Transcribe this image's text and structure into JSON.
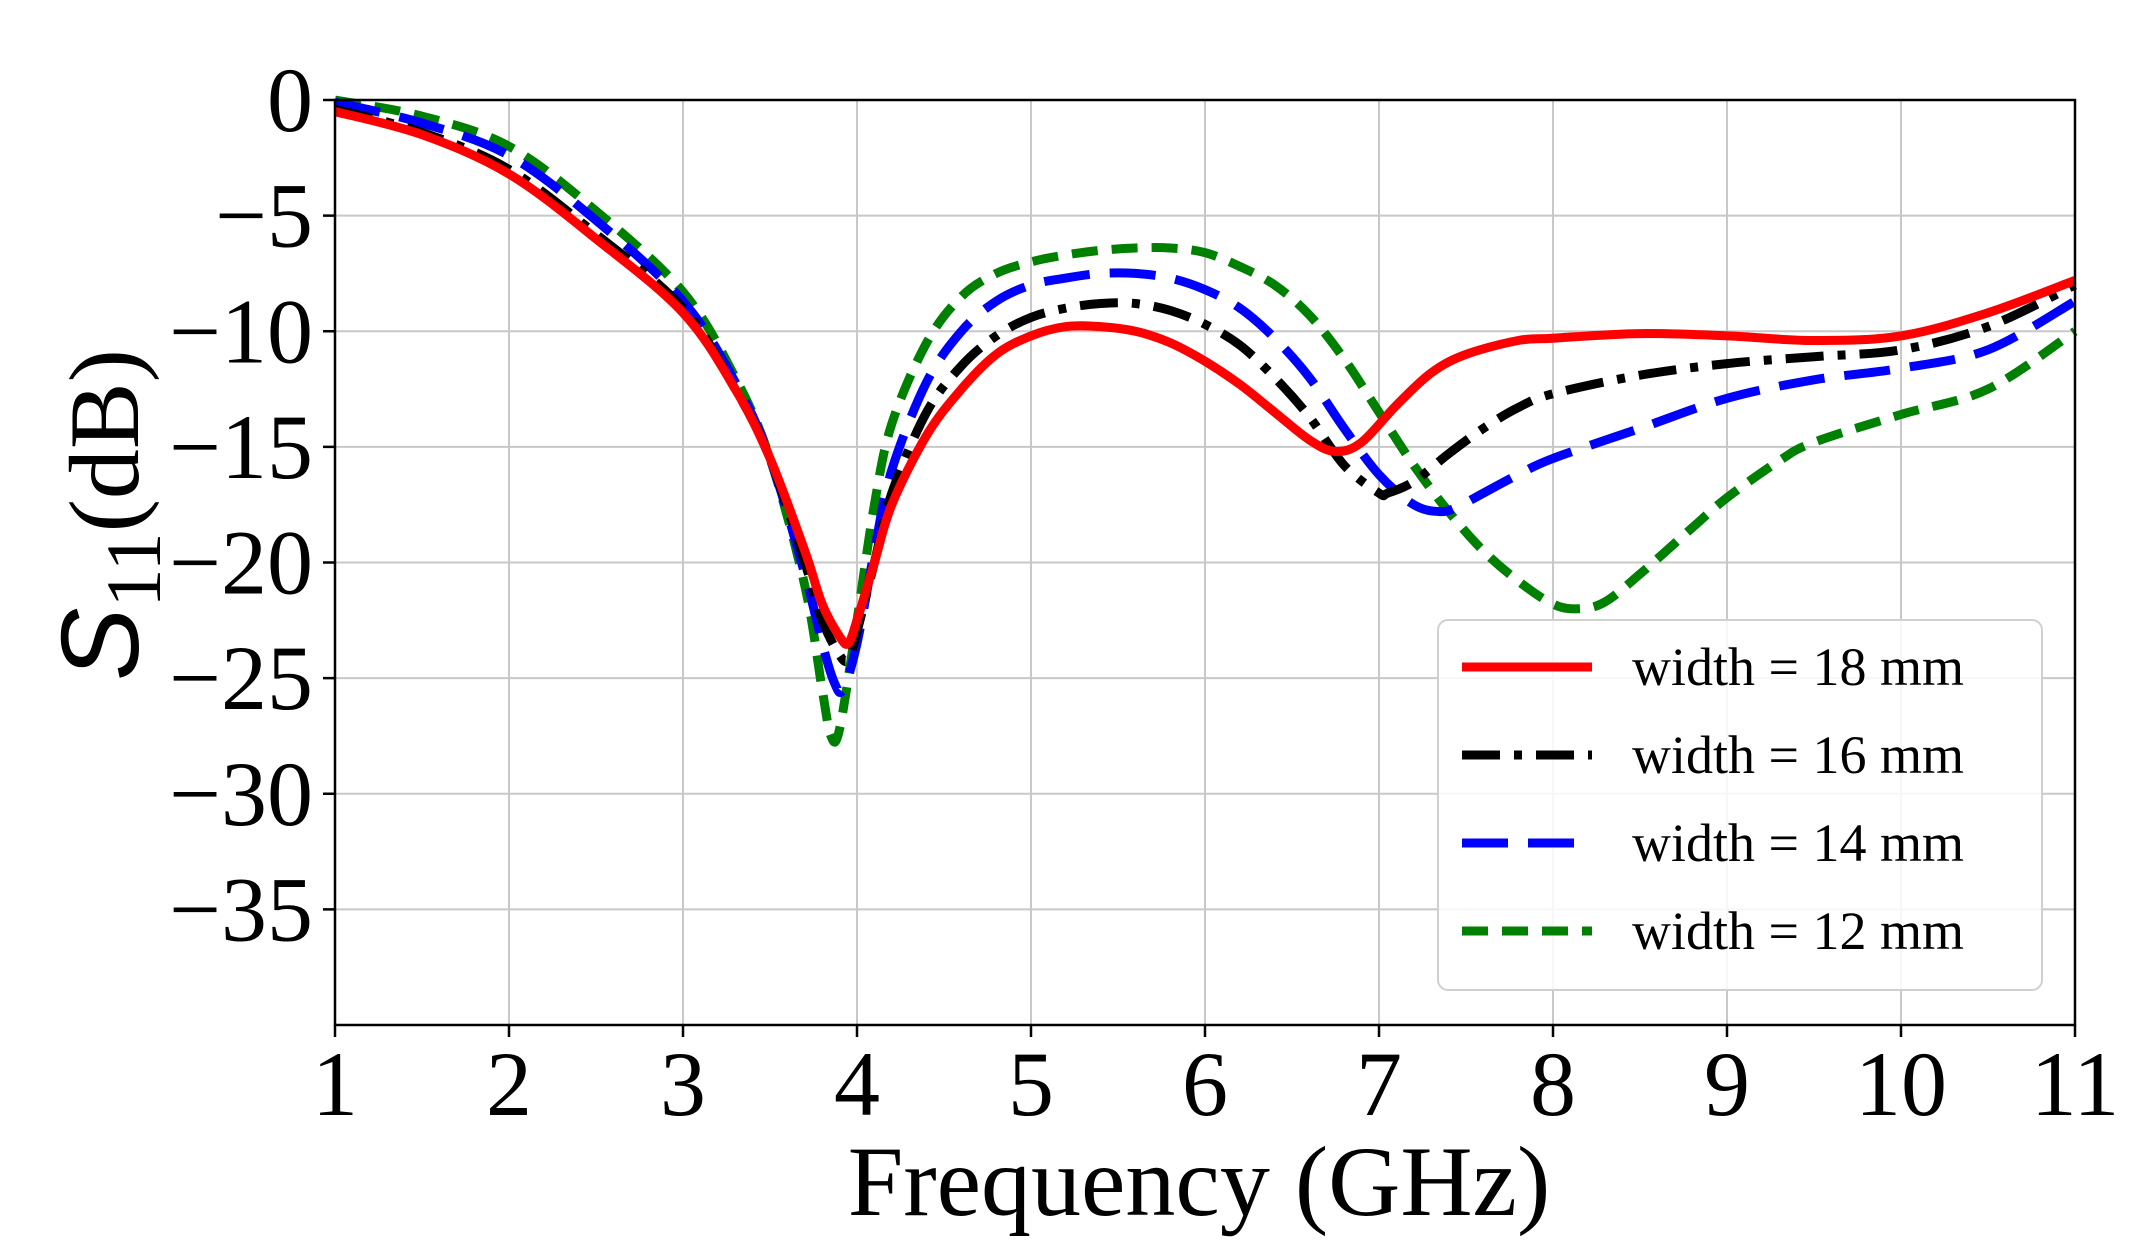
{
  "chart_data": {
    "type": "line",
    "title": "",
    "xlabel": "Frequency (GHz)",
    "ylabel_main": "S",
    "ylabel_sub": "11",
    "ylabel_unit": "(dB)",
    "xlim": [
      1,
      11
    ],
    "ylim": [
      -40,
      0
    ],
    "xticks": [
      1,
      2,
      3,
      4,
      5,
      6,
      7,
      8,
      9,
      10,
      11
    ],
    "yticks": [
      0,
      -5,
      -10,
      -15,
      -20,
      -25,
      -30,
      -35
    ],
    "xtick_labels": [
      "1",
      "2",
      "3",
      "4",
      "5",
      "6",
      "7",
      "8",
      "9",
      "10",
      "11"
    ],
    "ytick_labels": [
      "0",
      "−5",
      "−10",
      "−15",
      "−20",
      "−25",
      "−30",
      "−35"
    ],
    "grid": true,
    "legend_position": "lower-right",
    "series": [
      {
        "name": "width = 18 mm",
        "color": "#ff0000",
        "style": "solid",
        "x": [
          1.0,
          1.5,
          2.0,
          2.5,
          3.0,
          3.3,
          3.5,
          3.7,
          3.8,
          3.9,
          3.95,
          4.0,
          4.1,
          4.2,
          4.4,
          4.6,
          4.8,
          5.0,
          5.2,
          5.4,
          5.6,
          5.8,
          6.0,
          6.2,
          6.4,
          6.6,
          6.75,
          6.9,
          7.1,
          7.3,
          7.5,
          7.8,
          8.0,
          8.5,
          9.0,
          9.5,
          10.0,
          10.5,
          11.0
        ],
        "y": [
          -0.5,
          -1.5,
          -3.2,
          -6.0,
          -9.2,
          -12.5,
          -15.5,
          -19.5,
          -21.8,
          -23.2,
          -23.5,
          -22.5,
          -20.0,
          -17.5,
          -14.5,
          -12.5,
          -11.0,
          -10.2,
          -9.8,
          -9.8,
          -10.0,
          -10.5,
          -11.3,
          -12.3,
          -13.5,
          -14.7,
          -15.2,
          -14.8,
          -13.2,
          -11.8,
          -11.0,
          -10.4,
          -10.3,
          -10.1,
          -10.2,
          -10.4,
          -10.2,
          -9.2,
          -7.8
        ]
      },
      {
        "name": "width = 16 mm",
        "color": "#000000",
        "style": "dashdot",
        "x": [
          1.0,
          1.5,
          2.0,
          2.5,
          3.0,
          3.3,
          3.5,
          3.7,
          3.8,
          3.9,
          3.95,
          4.0,
          4.1,
          4.2,
          4.4,
          4.6,
          4.8,
          5.0,
          5.2,
          5.4,
          5.6,
          5.8,
          6.0,
          6.2,
          6.4,
          6.6,
          6.8,
          7.0,
          7.05,
          7.2,
          7.4,
          7.6,
          7.8,
          8.0,
          8.5,
          9.0,
          9.5,
          10.0,
          10.5,
          11.0
        ],
        "y": [
          -0.4,
          -1.4,
          -3.0,
          -5.8,
          -9.0,
          -12.5,
          -15.5,
          -20.0,
          -22.5,
          -24.0,
          -24.2,
          -23.0,
          -20.0,
          -17.0,
          -13.5,
          -11.5,
          -10.2,
          -9.4,
          -9.0,
          -8.8,
          -8.8,
          -9.1,
          -9.7,
          -10.6,
          -12.0,
          -13.7,
          -15.8,
          -17.0,
          -17.0,
          -16.5,
          -15.3,
          -14.2,
          -13.3,
          -12.7,
          -11.9,
          -11.4,
          -11.1,
          -10.8,
          -9.8,
          -8.0
        ]
      },
      {
        "name": "width = 14 mm",
        "color": "#0000ff",
        "style": "dashed",
        "x": [
          1.0,
          1.5,
          2.0,
          2.5,
          3.0,
          3.3,
          3.5,
          3.7,
          3.8,
          3.87,
          3.92,
          4.0,
          4.1,
          4.2,
          4.4,
          4.6,
          4.8,
          5.0,
          5.2,
          5.4,
          5.6,
          5.8,
          6.0,
          6.2,
          6.4,
          6.6,
          6.8,
          7.0,
          7.2,
          7.35,
          7.45,
          7.6,
          7.8,
          8.0,
          8.5,
          9.0,
          9.5,
          10.0,
          10.5,
          11.0
        ],
        "y": [
          -0.1,
          -1.0,
          -2.4,
          -5.2,
          -8.7,
          -12.2,
          -15.5,
          -20.5,
          -23.5,
          -25.2,
          -25.5,
          -23.5,
          -19.5,
          -16.0,
          -12.2,
          -10.0,
          -8.7,
          -8.0,
          -7.7,
          -7.5,
          -7.5,
          -7.7,
          -8.2,
          -9.0,
          -10.3,
          -12.0,
          -14.2,
          -16.2,
          -17.5,
          -17.8,
          -17.6,
          -17.0,
          -16.2,
          -15.5,
          -14.2,
          -12.9,
          -12.1,
          -11.6,
          -10.8,
          -8.7
        ]
      },
      {
        "name": "width = 12 mm",
        "color": "#008000",
        "style": "dashed",
        "x": [
          1.0,
          1.5,
          2.0,
          2.5,
          3.0,
          3.3,
          3.5,
          3.7,
          3.8,
          3.85,
          3.9,
          4.0,
          4.1,
          4.2,
          4.4,
          4.6,
          4.8,
          5.0,
          5.2,
          5.4,
          5.6,
          5.8,
          6.0,
          6.2,
          6.4,
          6.6,
          6.8,
          7.0,
          7.2,
          7.4,
          7.6,
          7.8,
          8.0,
          8.15,
          8.3,
          8.5,
          8.8,
          9.0,
          9.3,
          9.5,
          10.0,
          10.5,
          11.0
        ],
        "y": [
          0.0,
          -0.7,
          -2.0,
          -4.8,
          -8.3,
          -12.0,
          -15.5,
          -21.0,
          -25.5,
          -27.5,
          -27.2,
          -22.5,
          -17.5,
          -14.0,
          -10.5,
          -8.5,
          -7.5,
          -7.0,
          -6.7,
          -6.5,
          -6.4,
          -6.4,
          -6.6,
          -7.2,
          -8.0,
          -9.3,
          -11.2,
          -13.5,
          -15.8,
          -17.8,
          -19.5,
          -20.8,
          -21.8,
          -22.0,
          -21.7,
          -20.5,
          -18.5,
          -17.2,
          -15.6,
          -14.8,
          -13.6,
          -12.5,
          -10.0
        ]
      }
    ]
  }
}
